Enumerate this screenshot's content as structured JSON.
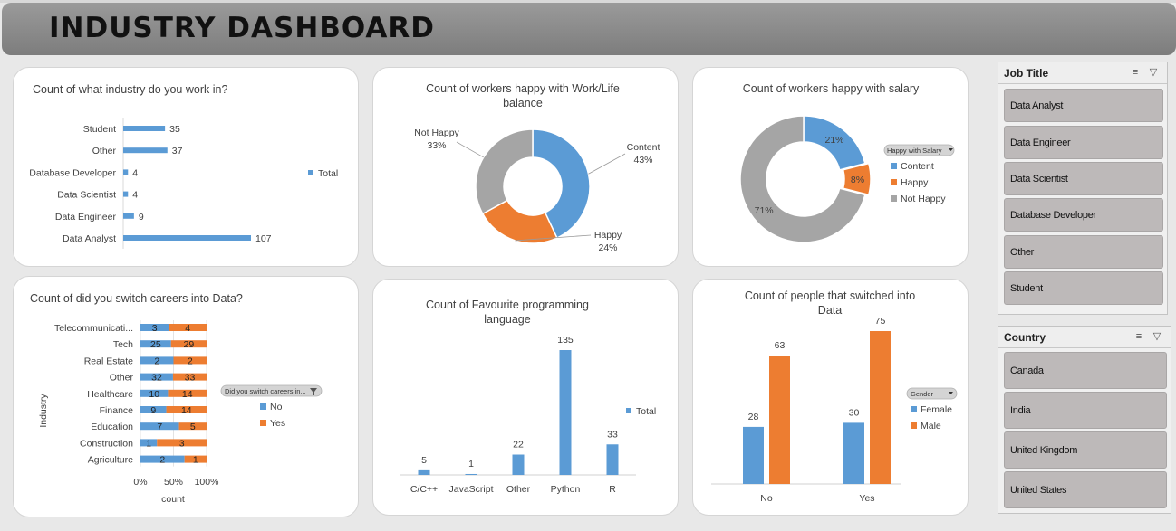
{
  "dashboard_title": "INDUSTRY DASHBOARD",
  "colors": {
    "blue": "#5b9bd5",
    "orange": "#ed7d31",
    "gray": "#a5a5a5"
  },
  "charts": {
    "industry": {
      "title": "Count of what industry do you work in?",
      "legend": "Total"
    },
    "worklife": {
      "title_line1": "Count of workers happy with Work/Life",
      "title_line2": "balance"
    },
    "salary": {
      "title": "Count of workers happy with salary",
      "filter_label": "Happy with Salary"
    },
    "switch": {
      "title": "Count of did you switch careers into Data?",
      "filter_label": "Did you switch careers in...",
      "legend_no": "No",
      "legend_yes": "Yes"
    },
    "language": {
      "title_line1": "Count of Favourite programming",
      "title_line2": "language",
      "legend": "Total"
    },
    "gender": {
      "title_line1": "Count of people that switched into",
      "title_line2": "Data",
      "filter_label": "Gender"
    }
  },
  "chart_data": [
    {
      "id": "industry",
      "type": "bar",
      "orientation": "horizontal",
      "title": "Count of what industry do you work in?",
      "categories": [
        "Student",
        "Other",
        "Database Developer",
        "Data Scientist",
        "Data Engineer",
        "Data Analyst"
      ],
      "series": [
        {
          "name": "Total",
          "values": [
            35,
            37,
            4,
            4,
            9,
            107
          ]
        }
      ]
    },
    {
      "id": "worklife",
      "type": "pie",
      "title": "Count of workers happy with Work/Life balance",
      "labels": [
        "Content",
        "Happy",
        "Not Happy"
      ],
      "values": [
        43,
        24,
        33
      ],
      "display": [
        "43%",
        "24%",
        "33%"
      ]
    },
    {
      "id": "salary",
      "type": "pie",
      "title": "Count of workers happy with salary",
      "labels": [
        "Content",
        "Happy",
        "Not Happy"
      ],
      "values": [
        21,
        8,
        71
      ],
      "display": [
        "21%",
        "8%",
        "71%"
      ]
    },
    {
      "id": "switch",
      "type": "bar",
      "orientation": "horizontal",
      "stacked": "percent",
      "title": "Count of did you switch careers into Data?",
      "xlabel": "count",
      "ylabel": "Industry",
      "xticks": [
        "0%",
        "50%",
        "100%"
      ],
      "categories": [
        "Telecommunicati...",
        "Tech",
        "Real Estate",
        "Other",
        "Healthcare",
        "Finance",
        "Education",
        "Construction",
        "Agriculture"
      ],
      "series": [
        {
          "name": "No",
          "values": [
            3,
            25,
            2,
            32,
            10,
            9,
            7,
            1,
            2
          ]
        },
        {
          "name": "Yes",
          "values": [
            4,
            29,
            2,
            33,
            14,
            14,
            5,
            3,
            1
          ]
        }
      ]
    },
    {
      "id": "language",
      "type": "bar",
      "title": "Count of Favourite programming language",
      "categories": [
        "C/C++",
        "JavaScript",
        "Other",
        "Python",
        "R"
      ],
      "series": [
        {
          "name": "Total",
          "values": [
            5,
            1,
            22,
            135,
            33
          ]
        }
      ]
    },
    {
      "id": "gender",
      "type": "bar",
      "title": "Count of people that switched into Data",
      "categories": [
        "No",
        "Yes"
      ],
      "series": [
        {
          "name": "Female",
          "values": [
            28,
            30
          ]
        },
        {
          "name": "Male",
          "values": [
            63,
            75
          ]
        }
      ]
    }
  ],
  "slicers": {
    "job_title": {
      "title": "Job Title",
      "items": [
        "Data Analyst",
        "Data Engineer",
        "Data Scientist",
        "Database Developer",
        "Other",
        "Student"
      ]
    },
    "country": {
      "title": "Country",
      "items": [
        "Canada",
        "India",
        "United Kingdom",
        "United States"
      ]
    }
  }
}
